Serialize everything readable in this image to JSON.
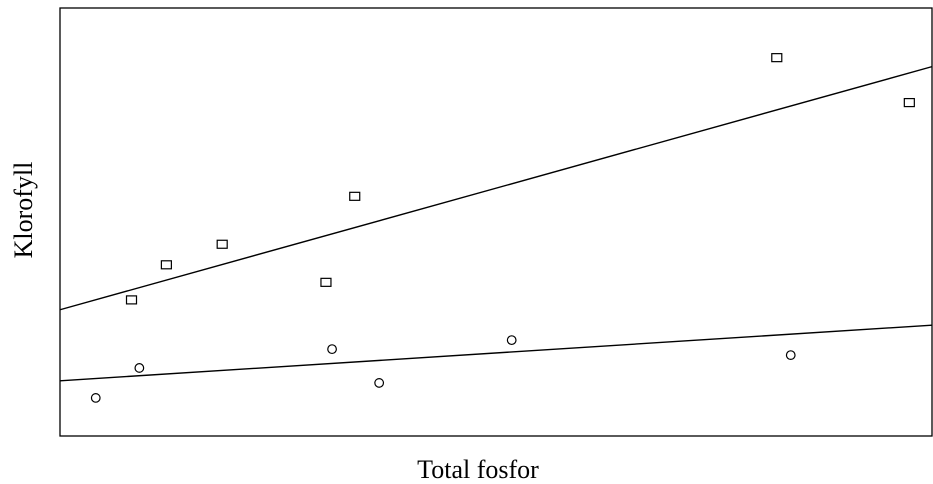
{
  "chart_data": {
    "type": "scatter",
    "xlabel": "Total fosfor",
    "ylabel": "Klorofyll",
    "xlim": [
      0,
      100
    ],
    "ylim": [
      0,
      100
    ],
    "x_ticks_shown": false,
    "y_ticks_shown": false,
    "grid": false,
    "colors": {
      "stroke": "#000000",
      "background": "#ffffff"
    },
    "series": [
      {
        "marker": "square",
        "points": [
          {
            "x": 8.2,
            "y": 31.8
          },
          {
            "x": 12.2,
            "y": 40.0
          },
          {
            "x": 18.6,
            "y": 44.8
          },
          {
            "x": 30.5,
            "y": 35.9
          },
          {
            "x": 33.8,
            "y": 56.0
          },
          {
            "x": 82.2,
            "y": 88.4
          },
          {
            "x": 97.4,
            "y": 77.9
          }
        ],
        "fit_line": {
          "x": [
            0,
            100
          ],
          "y": [
            29.5,
            86.3
          ]
        }
      },
      {
        "marker": "circle",
        "points": [
          {
            "x": 4.1,
            "y": 8.9
          },
          {
            "x": 9.1,
            "y": 15.9
          },
          {
            "x": 31.2,
            "y": 20.3
          },
          {
            "x": 36.6,
            "y": 12.4
          },
          {
            "x": 51.8,
            "y": 22.4
          },
          {
            "x": 83.8,
            "y": 18.9
          }
        ],
        "fit_line": {
          "x": [
            0,
            100
          ],
          "y": [
            12.9,
            25.9
          ]
        }
      }
    ]
  }
}
